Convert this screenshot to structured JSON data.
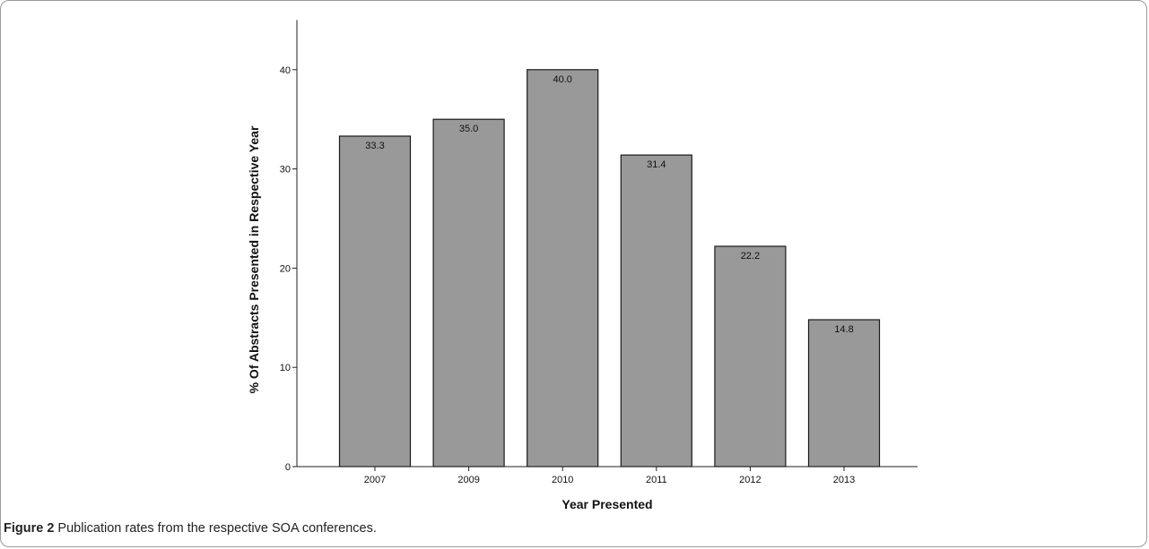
{
  "chart_data": {
    "type": "bar",
    "categories": [
      "2007",
      "2009",
      "2010",
      "2011",
      "2012",
      "2013"
    ],
    "values": [
      33.3,
      35.0,
      40.0,
      31.4,
      22.2,
      14.8
    ],
    "value_labels": [
      "33.3",
      "35.0",
      "40.0",
      "31.4",
      "22.2",
      "14.8"
    ],
    "xlabel": "Year Presented",
    "ylabel": "% Of Abstracts Presented in Respective Year",
    "ylim": [
      0,
      45
    ],
    "yticks": [
      0,
      10,
      20,
      30,
      40
    ],
    "bar_color": "#999999",
    "grid": false
  },
  "caption": {
    "label": "Figure 2",
    "text": " Publication rates from the respective SOA conferences."
  }
}
